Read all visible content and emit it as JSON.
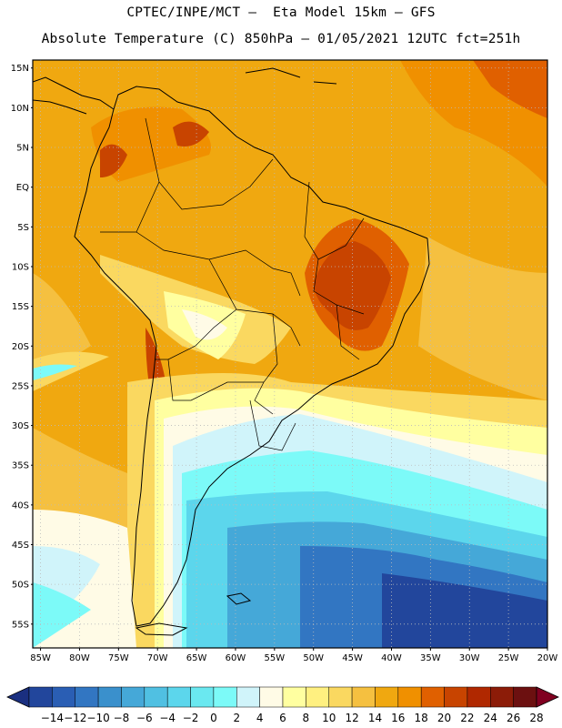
{
  "header": {
    "line1": "CPTEC/INPE/MCT –  Eta Model 15km – GFS",
    "line2": "Absolute Temperature (C) 850hPa – 01/05/2021 12UTC fct=251h"
  },
  "map": {
    "lat_labels": [
      "15N",
      "10N",
      "5N",
      "EQ",
      "5S",
      "10S",
      "15S",
      "20S",
      "25S",
      "30S",
      "35S",
      "40S",
      "45S",
      "50S",
      "55S"
    ],
    "lat_values": [
      15,
      10,
      5,
      0,
      -5,
      -10,
      -15,
      -20,
      -25,
      -30,
      -35,
      -40,
      -45,
      -50,
      -55
    ],
    "lon_labels": [
      "85W",
      "80W",
      "75W",
      "70W",
      "65W",
      "60W",
      "55W",
      "50W",
      "45W",
      "40W",
      "35W",
      "30W",
      "25W",
      "20W"
    ],
    "lon_values": [
      -85,
      -80,
      -75,
      -70,
      -65,
      -60,
      -55,
      -50,
      -45,
      -40,
      -35,
      -30,
      -25,
      -20
    ],
    "extent": {
      "lon_min": -86,
      "lon_max": -20,
      "lat_min": -58,
      "lat_max": 16
    }
  },
  "legend": {
    "units": "C",
    "labels": [
      "-14",
      "-12",
      "-10",
      "-8",
      "-6",
      "-4",
      "-2",
      "0",
      "2",
      "4",
      "6",
      "8",
      "10",
      "12",
      "14",
      "16",
      "18",
      "20",
      "22",
      "24",
      "26",
      "28"
    ],
    "colors": [
      "#1a2f80",
      "#22469c",
      "#2a5eb4",
      "#3276c2",
      "#3a90cc",
      "#45a8d8",
      "#50c0e2",
      "#5cd6ec",
      "#6ae8f0",
      "#7cfaf8",
      "#d0f4fa",
      "#fffbe6",
      "#ffffa0",
      "#fff080",
      "#fad860",
      "#f5c040",
      "#f0a810",
      "#f09000",
      "#e06000",
      "#c84400",
      "#b02800",
      "#8c1c08",
      "#6c1010",
      "#800020"
    ]
  }
}
